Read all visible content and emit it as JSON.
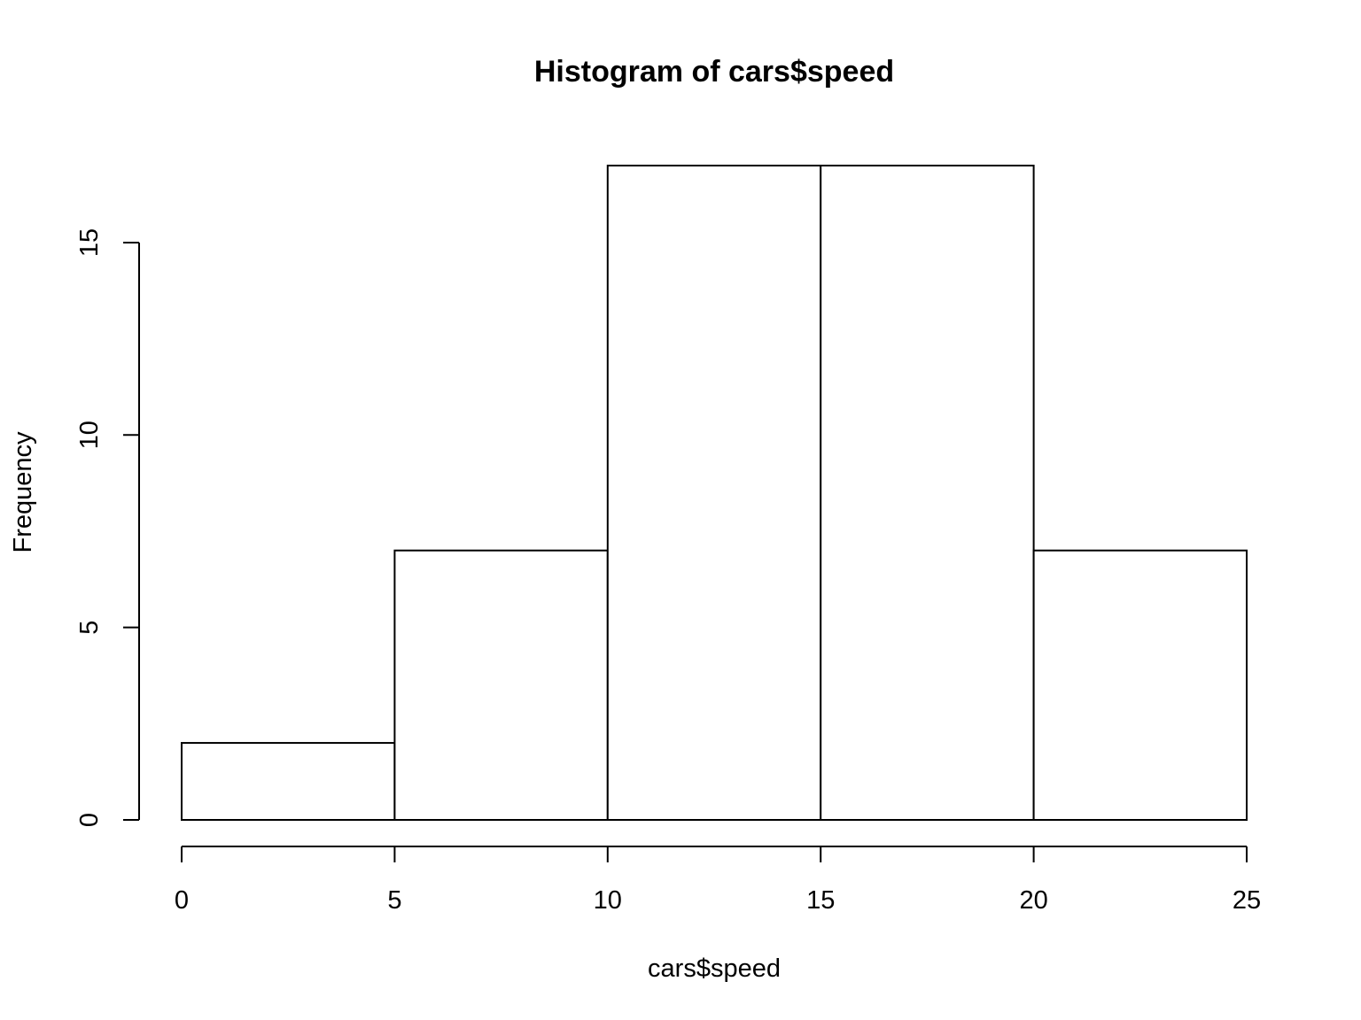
{
  "chart_data": {
    "type": "bar",
    "title": "Histogram of cars$speed",
    "xlabel": "cars$speed",
    "ylabel": "Frequency",
    "bins": [
      {
        "start": 0,
        "end": 5,
        "count": 2
      },
      {
        "start": 5,
        "end": 10,
        "count": 7
      },
      {
        "start": 10,
        "end": 15,
        "count": 17
      },
      {
        "start": 15,
        "end": 20,
        "count": 17
      },
      {
        "start": 20,
        "end": 25,
        "count": 7
      }
    ],
    "xlim": [
      0,
      25
    ],
    "ylim": [
      0,
      17
    ],
    "x_ticks": [
      "0",
      "5",
      "10",
      "15",
      "20",
      "25"
    ],
    "y_ticks": [
      "0",
      "5",
      "10",
      "15"
    ],
    "grid": false,
    "colors": {
      "bar_fill": "#ffffff",
      "bar_stroke": "#000000",
      "background": "#ffffff"
    }
  }
}
